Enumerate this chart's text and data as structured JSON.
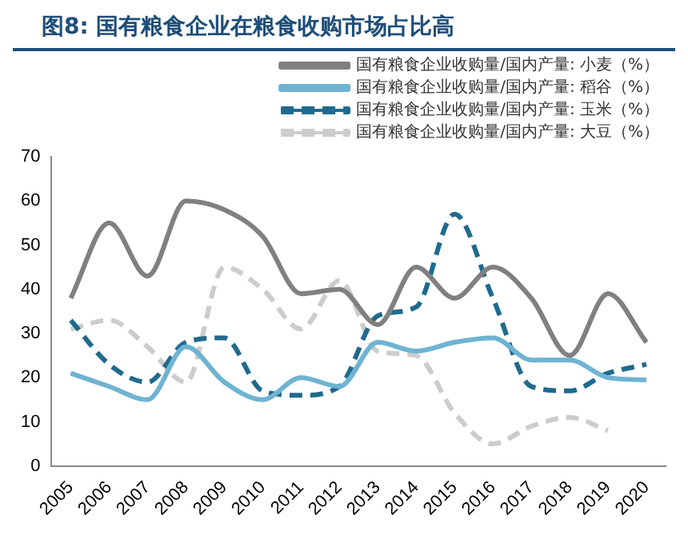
{
  "chart_data": {
    "type": "line",
    "title": "图8: 国有粮食企业在粮食收购市场占比高",
    "categories": [
      "2005",
      "2006",
      "2007",
      "2008",
      "2009",
      "2010",
      "2011",
      "2012",
      "2013",
      "2014",
      "2015",
      "2016",
      "2017",
      "2018",
      "2019",
      "2020"
    ],
    "series": [
      {
        "name": "国有粮食企业收购量/国内产量: 小麦（%）",
        "color": "#808080",
        "line_style": "solid",
        "values": [
          38,
          55,
          43,
          60,
          58,
          52,
          39,
          40,
          32,
          45,
          38,
          45,
          38,
          25,
          39,
          28
        ]
      },
      {
        "name": "国有粮食企业收购量/国内产量: 稻谷（%）",
        "color": "#6fb3d2",
        "line_style": "solid",
        "values": [
          21,
          18,
          15,
          27,
          19,
          15,
          20,
          18,
          28,
          26,
          28,
          29,
          24,
          24,
          20,
          19.5
        ]
      },
      {
        "name": "国有粮食企业收购量/国内产量: 玉米（%）",
        "color": "#1f6a8e",
        "line_style": "dashed",
        "values": [
          33,
          23,
          19,
          28,
          29,
          17,
          16,
          18,
          34,
          36,
          57,
          38,
          18,
          17,
          21,
          23
        ]
      },
      {
        "name": "国有粮食企业收购量/国内产量: 大豆（%）",
        "color": "#cccccc",
        "line_style": "dashed",
        "values": [
          31,
          33,
          27,
          19,
          45,
          40,
          31,
          42,
          26,
          25,
          12,
          5,
          9,
          11,
          8,
          null
        ]
      }
    ],
    "ylim": [
      0,
      70
    ],
    "yticks": [
      0,
      10,
      20,
      30,
      40,
      50,
      60,
      70
    ],
    "grid": false,
    "legend": "top",
    "marker": "none"
  }
}
